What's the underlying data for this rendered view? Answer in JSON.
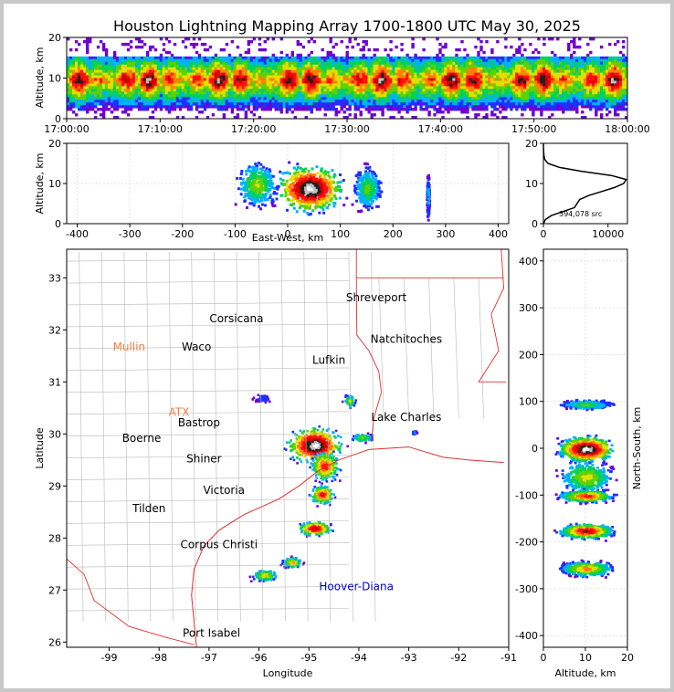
{
  "title": "Houston Lightning Mapping Array 1700-1800 UTC May 30, 2025",
  "colors": {
    "map_border": "#e03030",
    "county_lines": "#b8b8b8",
    "radar_label": "#f08040",
    "ship_label": "#0000cc",
    "minor_label": "#60c000"
  },
  "chart_data": [
    {
      "type": "heatmap",
      "panel": "altitude-time",
      "xlabel": "",
      "ylabel": "Altitude, km",
      "ylim": [
        0,
        20
      ],
      "yticks": [
        0,
        10,
        20
      ],
      "xticks": [
        "17:00:00",
        "17:10:00",
        "17:20:00",
        "17:30:00",
        "17:40:00",
        "17:50:00",
        "18:00:00"
      ],
      "band_km": [
        2,
        15
      ],
      "core_km": [
        7,
        12
      ]
    },
    {
      "type": "heatmap",
      "panel": "altitude-east-west",
      "xlabel": "East-West, km",
      "ylabel": "Altitude, km",
      "xlim": [
        -420,
        420
      ],
      "ylim": [
        0,
        20
      ],
      "xticks": [
        -400,
        -300,
        -200,
        -100,
        0,
        100,
        200,
        300,
        400
      ],
      "yticks": [
        0,
        10,
        20
      ],
      "clusters": [
        {
          "x": 40,
          "spread_x": 70,
          "alt": 9,
          "peak": 1.0
        },
        {
          "x": -60,
          "spread_x": 45,
          "alt": 10,
          "peak": 0.45
        },
        {
          "x": 150,
          "spread_x": 30,
          "alt": 9,
          "peak": 0.4
        },
        {
          "x": 265,
          "spread_x": 3,
          "alt": 7,
          "peak": 0.25
        }
      ]
    },
    {
      "type": "line",
      "panel": "altitude-histogram",
      "xlim": [
        0,
        13000
      ],
      "ylim": [
        0,
        20
      ],
      "xticks": [
        0,
        10000
      ],
      "yticks": [
        0,
        10,
        20
      ],
      "annotation": "394,078 src",
      "altitude": [
        0,
        1,
        2,
        3,
        4,
        5,
        6,
        7,
        8,
        9,
        10,
        11,
        12,
        13,
        14,
        15,
        16,
        17,
        18,
        19,
        20
      ],
      "sources": [
        0,
        300,
        1200,
        3000,
        4800,
        5200,
        5600,
        7000,
        9000,
        11000,
        12400,
        12800,
        10500,
        6000,
        2500,
        700,
        200,
        80,
        30,
        10,
        0
      ]
    },
    {
      "type": "scatter",
      "panel": "map",
      "xlabel": "Longitude",
      "ylabel": "Latitude",
      "xlim": [
        -99.85,
        -91.0
      ],
      "ylim": [
        25.9,
        33.55
      ],
      "xticks": [
        -99,
        -98,
        -97,
        -96,
        -95,
        -94,
        -93,
        -92,
        -91
      ],
      "yticks": [
        26,
        27,
        28,
        29,
        30,
        31,
        32,
        33
      ],
      "storms": [
        {
          "lon": -94.9,
          "lat": 29.8,
          "rx": 0.55,
          "ry": 0.35,
          "peak": 1.0
        },
        {
          "lon": -94.7,
          "lat": 29.4,
          "rx": 0.3,
          "ry": 0.3,
          "peak": 0.7
        },
        {
          "lon": -94.75,
          "lat": 28.85,
          "rx": 0.25,
          "ry": 0.18,
          "peak": 0.75
        },
        {
          "lon": -94.9,
          "lat": 28.2,
          "rx": 0.35,
          "ry": 0.14,
          "peak": 0.8
        },
        {
          "lon": -95.35,
          "lat": 27.55,
          "rx": 0.2,
          "ry": 0.1,
          "peak": 0.6
        },
        {
          "lon": -95.9,
          "lat": 27.3,
          "rx": 0.25,
          "ry": 0.12,
          "peak": 0.55
        },
        {
          "lon": -94.2,
          "lat": 30.65,
          "rx": 0.12,
          "ry": 0.12,
          "peak": 0.5
        },
        {
          "lon": -93.95,
          "lat": 29.95,
          "rx": 0.25,
          "ry": 0.08,
          "peak": 0.45
        },
        {
          "lon": -95.95,
          "lat": 30.7,
          "rx": 0.2,
          "ry": 0.1,
          "peak": 0.15
        },
        {
          "lon": -92.9,
          "lat": 30.05,
          "rx": 0.05,
          "ry": 0.04,
          "peak": 0.3
        }
      ],
      "places": [
        {
          "name": "Shreveport",
          "lon": -93.65,
          "lat": 32.55,
          "color": "#000000"
        },
        {
          "name": "Corsicana",
          "lon": -96.45,
          "lat": 32.15,
          "color": "#000000"
        },
        {
          "name": "Natchitoches",
          "lon": -93.05,
          "lat": 31.75,
          "color": "#000000"
        },
        {
          "name": "Mullin",
          "lon": -98.6,
          "lat": 31.6,
          "color": "#f08040"
        },
        {
          "name": "Waco",
          "lon": -97.25,
          "lat": 31.6,
          "color": "#000000"
        },
        {
          "name": "Lufkin",
          "lon": -94.6,
          "lat": 31.35,
          "color": "#000000"
        },
        {
          "name": "Lake Charles",
          "lon": -93.05,
          "lat": 30.25,
          "color": "#000000"
        },
        {
          "name": "ATX",
          "lon": -97.6,
          "lat": 30.35,
          "color": "#f08040"
        },
        {
          "name": "Bastrop",
          "lon": -97.2,
          "lat": 30.15,
          "color": "#000000"
        },
        {
          "name": "Boerne",
          "lon": -98.35,
          "lat": 29.85,
          "color": "#000000"
        },
        {
          "name": "Shiner",
          "lon": -97.1,
          "lat": 29.45,
          "color": "#000000"
        },
        {
          "name": "Victoria",
          "lon": -96.7,
          "lat": 28.85,
          "color": "#000000"
        },
        {
          "name": "Tilden",
          "lon": -98.2,
          "lat": 28.5,
          "color": "#000000"
        },
        {
          "name": "Corpus Christi",
          "lon": -96.8,
          "lat": 27.8,
          "color": "#000000"
        },
        {
          "name": "Hoover-Diana",
          "lon": -94.05,
          "lat": 27.0,
          "color": "#0000cc"
        },
        {
          "name": "Port Isabel",
          "lon": -96.95,
          "lat": 26.1,
          "color": "#000000"
        }
      ]
    },
    {
      "type": "heatmap",
      "panel": "north-south-altitude",
      "xlabel": "Altitude, km",
      "ylabel": "North-South, km",
      "xlim": [
        0,
        20
      ],
      "ylim": [
        -425,
        425
      ],
      "xticks": [
        0,
        10,
        20
      ],
      "yticks": [
        -400,
        -300,
        -200,
        -100,
        0,
        100,
        200,
        300,
        400
      ],
      "clusters": [
        {
          "y": 95,
          "spread_y": 12,
          "peak": 0.4
        },
        {
          "y": 0,
          "spread_y": 30,
          "peak": 1.0
        },
        {
          "y": -60,
          "spread_y": 40,
          "peak": 0.5
        },
        {
          "y": -100,
          "spread_y": 15,
          "peak": 0.7
        },
        {
          "y": -175,
          "spread_y": 18,
          "peak": 0.8
        },
        {
          "y": -255,
          "spread_y": 18,
          "peak": 0.6
        }
      ]
    }
  ]
}
